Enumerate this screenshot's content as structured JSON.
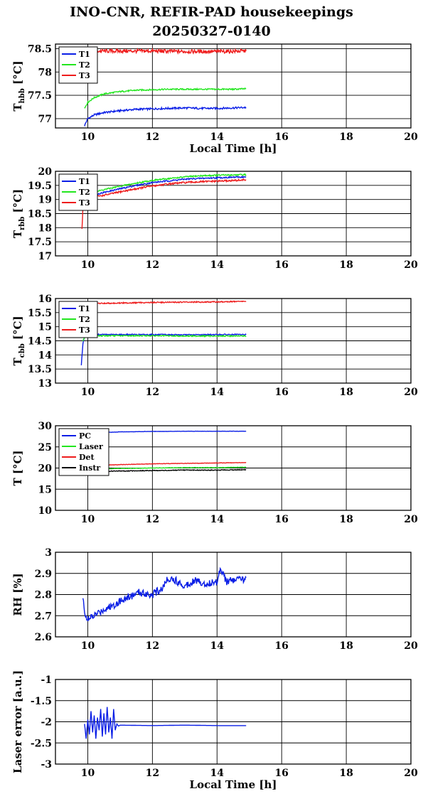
{
  "title_line1": "INO-CNR, REFIR-PAD housekeepings",
  "title_line2": "20250327-0140",
  "colors": {
    "blue": "#0a1ee6",
    "green": "#22e61e",
    "red": "#ee1c1c",
    "black": "#000000"
  },
  "chart_data": [
    {
      "type": "line",
      "ylabel_main": "T",
      "ylabel_sub": "hbb",
      "ylabel_unit": "[°C]",
      "xlabel": "Local Time [h]",
      "xlim": [
        9,
        20
      ],
      "ylim": [
        76.8,
        78.6
      ],
      "xticks": [
        10,
        12,
        14,
        16,
        18,
        20
      ],
      "yticks": [
        77,
        77.5,
        78,
        78.5
      ],
      "ytick_labels": [
        "77",
        "77.5",
        "78",
        "78.5"
      ],
      "grid": true,
      "legend_position": "top-left",
      "series": [
        {
          "name": "T1",
          "color": "#0a1ee6",
          "noise": 0.02,
          "x": [
            9.9,
            10.0,
            10.2,
            10.5,
            11.0,
            11.5,
            12.0,
            12.5,
            13.0,
            13.5,
            14.0,
            14.5,
            14.9
          ],
          "y": [
            76.85,
            77.0,
            77.08,
            77.13,
            77.17,
            77.2,
            77.21,
            77.22,
            77.23,
            77.22,
            77.22,
            77.23,
            77.24
          ]
        },
        {
          "name": "T2",
          "color": "#22e61e",
          "noise": 0.015,
          "x": [
            9.9,
            10.0,
            10.2,
            10.5,
            11.0,
            11.5,
            12.0,
            12.5,
            13.0,
            13.5,
            14.0,
            14.5,
            14.9
          ],
          "y": [
            77.22,
            77.35,
            77.45,
            77.53,
            77.58,
            77.61,
            77.62,
            77.63,
            77.63,
            77.63,
            77.63,
            77.63,
            77.64
          ]
        },
        {
          "name": "T3",
          "color": "#ee1c1c",
          "noise": 0.04,
          "x": [
            10.0,
            11.0,
            12.0,
            13.0,
            14.0,
            14.9
          ],
          "y": [
            78.45,
            78.45,
            78.45,
            78.44,
            78.44,
            78.45
          ]
        }
      ]
    },
    {
      "type": "line",
      "ylabel_main": "T",
      "ylabel_sub": "rbb",
      "ylabel_unit": "[°C]",
      "xlabel": "",
      "xlim": [
        9,
        20
      ],
      "ylim": [
        17,
        20
      ],
      "xticks": [
        10,
        12,
        14,
        16,
        18,
        20
      ],
      "yticks": [
        17,
        17.5,
        18,
        18.5,
        19,
        19.5,
        20
      ],
      "ytick_labels": [
        "17",
        "17.5",
        "18",
        "18.5",
        "19",
        "19.5",
        "20"
      ],
      "grid": true,
      "legend_position": "top-left",
      "series": [
        {
          "name": "T1",
          "color": "#0a1ee6",
          "noise": 0.025,
          "x": [
            9.85,
            10.0,
            10.5,
            11.0,
            11.5,
            12.0,
            12.5,
            13.0,
            13.5,
            14.0,
            14.5,
            14.9
          ],
          "y": [
            18.8,
            19.1,
            19.25,
            19.38,
            19.5,
            19.6,
            19.66,
            19.72,
            19.75,
            19.77,
            19.79,
            19.8
          ]
        },
        {
          "name": "T2",
          "color": "#22e61e",
          "noise": 0.025,
          "x": [
            9.85,
            10.0,
            10.5,
            11.0,
            11.5,
            12.0,
            12.5,
            13.0,
            13.5,
            14.0,
            14.5,
            14.9
          ],
          "y": [
            18.9,
            19.2,
            19.35,
            19.47,
            19.58,
            19.68,
            19.74,
            19.8,
            19.84,
            19.86,
            19.87,
            19.88
          ]
        },
        {
          "name": "T3",
          "color": "#ee1c1c",
          "noise": 0.03,
          "x": [
            9.82,
            9.85,
            10.0,
            10.5,
            11.0,
            11.5,
            12.0,
            12.5,
            13.0,
            13.5,
            14.0,
            14.5,
            14.9
          ],
          "y": [
            17.95,
            18.7,
            19.05,
            19.15,
            19.27,
            19.38,
            19.48,
            19.55,
            19.6,
            19.63,
            19.65,
            19.67,
            19.7
          ]
        }
      ]
    },
    {
      "type": "line",
      "ylabel_main": "T",
      "ylabel_sub": "cbb",
      "ylabel_unit": "[°C]",
      "xlabel": "",
      "xlim": [
        9,
        20
      ],
      "ylim": [
        13,
        16
      ],
      "xticks": [
        10,
        12,
        14,
        16,
        18,
        20
      ],
      "yticks": [
        13,
        13.5,
        14,
        14.5,
        15,
        15.5,
        16
      ],
      "ytick_labels": [
        "13",
        "13.5",
        "14",
        "14.5",
        "15",
        "15.5",
        "16"
      ],
      "grid": true,
      "legend_position": "top-left",
      "series": [
        {
          "name": "T1",
          "color": "#0a1ee6",
          "noise": 0.02,
          "x": [
            9.8,
            9.85,
            9.9,
            10.0,
            11.0,
            12.0,
            13.0,
            14.0,
            14.9
          ],
          "y": [
            13.65,
            14.4,
            14.65,
            14.72,
            14.72,
            14.72,
            14.71,
            14.72,
            14.72
          ]
        },
        {
          "name": "T2",
          "color": "#22e61e",
          "noise": 0.02,
          "x": [
            9.85,
            9.9,
            10.0,
            11.0,
            12.0,
            13.0,
            14.0,
            14.9
          ],
          "y": [
            14.5,
            14.62,
            14.68,
            14.68,
            14.68,
            14.67,
            14.67,
            14.67
          ]
        },
        {
          "name": "T3",
          "color": "#ee1c1c",
          "noise": 0.02,
          "x": [
            10.0,
            11.0,
            12.0,
            13.0,
            14.0,
            14.9
          ],
          "y": [
            15.82,
            15.84,
            15.86,
            15.87,
            15.88,
            15.9
          ]
        }
      ]
    },
    {
      "type": "line",
      "ylabel_main": "T [°C]",
      "ylabel_sub": "",
      "ylabel_unit": "",
      "xlabel": "",
      "xlim": [
        9,
        20
      ],
      "ylim": [
        10,
        30
      ],
      "xticks": [
        10,
        12,
        14,
        16,
        18,
        20
      ],
      "yticks": [
        10,
        15,
        20,
        25,
        30
      ],
      "ytick_labels": [
        "10",
        "15",
        "20",
        "25",
        "30"
      ],
      "grid": true,
      "legend_position": "top-left",
      "series": [
        {
          "name": "PC",
          "color": "#0a1ee6",
          "noise": 0.03,
          "x": [
            10.0,
            10.5,
            11.0,
            11.5,
            12.0,
            13.0,
            14.0,
            14.9
          ],
          "y": [
            28.0,
            28.4,
            28.55,
            28.6,
            28.65,
            28.7,
            28.7,
            28.7
          ]
        },
        {
          "name": "Laser",
          "color": "#22e61e",
          "noise": 0.05,
          "x": [
            10.0,
            11.0,
            12.0,
            13.0,
            14.0,
            14.9
          ],
          "y": [
            19.7,
            19.9,
            20.0,
            20.1,
            20.1,
            20.2
          ]
        },
        {
          "name": "Det",
          "color": "#ee1c1c",
          "noise": 0.05,
          "x": [
            10.0,
            11.0,
            12.0,
            13.0,
            14.0,
            14.9
          ],
          "y": [
            20.6,
            20.8,
            21.0,
            21.1,
            21.2,
            21.3
          ]
        },
        {
          "name": "Instr",
          "color": "#000000",
          "noise": 0.08,
          "x": [
            10.0,
            11.0,
            12.0,
            13.0,
            14.0,
            14.9
          ],
          "y": [
            19.2,
            19.3,
            19.4,
            19.5,
            19.5,
            19.6
          ]
        }
      ]
    },
    {
      "type": "line",
      "ylabel_main": "RH [%]",
      "ylabel_sub": "",
      "ylabel_unit": "",
      "xlabel": "",
      "xlim": [
        9,
        20
      ],
      "ylim": [
        2.6,
        3.0
      ],
      "xticks": [
        10,
        12,
        14,
        16,
        18,
        20
      ],
      "yticks": [
        2.6,
        2.7,
        2.8,
        2.9,
        3
      ],
      "ytick_labels": [
        "2.6",
        "2.7",
        "2.8",
        "2.9",
        "3"
      ],
      "grid": true,
      "legend_position": "",
      "series": [
        {
          "name": "",
          "color": "#0a1ee6",
          "noise": 0.018,
          "x": [
            9.85,
            9.9,
            10.0,
            10.2,
            10.5,
            10.8,
            11.0,
            11.3,
            11.6,
            12.0,
            12.3,
            12.5,
            12.8,
            13.0,
            13.3,
            13.6,
            14.0,
            14.1,
            14.3,
            14.6,
            14.8,
            14.9
          ],
          "y": [
            2.78,
            2.72,
            2.68,
            2.7,
            2.73,
            2.75,
            2.77,
            2.79,
            2.81,
            2.8,
            2.83,
            2.88,
            2.86,
            2.84,
            2.87,
            2.85,
            2.86,
            2.93,
            2.86,
            2.87,
            2.87,
            2.88
          ]
        }
      ]
    },
    {
      "type": "line",
      "ylabel_main": "Laser error [a.u.]",
      "ylabel_sub": "",
      "ylabel_unit": "",
      "xlabel": "Local Time [h]",
      "xlim": [
        9,
        20
      ],
      "ylim": [
        -3,
        -1
      ],
      "xticks": [
        10,
        12,
        14,
        16,
        18,
        20
      ],
      "yticks": [
        -3,
        -2.5,
        -2,
        -1.5,
        -1
      ],
      "ytick_labels": [
        "-3",
        "-2.5",
        "-2",
        "-1.5",
        "-1"
      ],
      "grid": true,
      "legend_position": "",
      "series": [
        {
          "name": "",
          "color": "#0a1ee6",
          "noise": 0.0,
          "x": [
            9.9,
            9.95,
            10.0,
            10.05,
            10.1,
            10.15,
            10.2,
            10.25,
            10.3,
            10.35,
            10.4,
            10.45,
            10.5,
            10.55,
            10.6,
            10.65,
            10.7,
            10.75,
            10.8,
            10.85,
            10.9,
            10.95,
            11.0,
            12.0,
            13.0,
            14.0,
            14.9
          ],
          "y": [
            -2.05,
            -2.4,
            -1.95,
            -2.3,
            -1.75,
            -2.25,
            -1.85,
            -2.4,
            -1.9,
            -2.2,
            -1.7,
            -2.35,
            -1.8,
            -2.3,
            -1.65,
            -2.25,
            -1.9,
            -2.4,
            -1.7,
            -2.2,
            -2.05,
            -2.1,
            -2.08,
            -2.09,
            -2.08,
            -2.09,
            -2.09
          ]
        }
      ]
    }
  ]
}
